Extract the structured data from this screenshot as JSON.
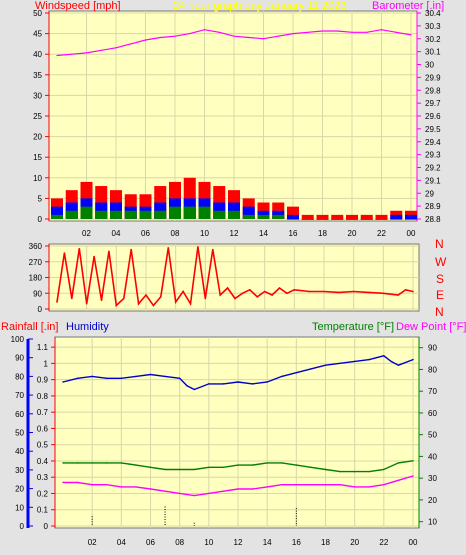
{
  "colors": {
    "background": "#e3e3e3",
    "plot_bg": "#ffffc0",
    "grid": "#d8d8a8",
    "wind": "#ff0000",
    "gust_mid": "#0000ff",
    "gust_low": "#008000",
    "barometer": "#ff00ff",
    "title": "#ffff00",
    "humidity": "#0000cc",
    "temperature": "#008000",
    "dewpoint": "#ff00ff",
    "rain_axis": "#0000ff"
  },
  "header": {
    "wind_label": "Windspeed [mph]",
    "title": "24 hour graph day    January 11 2023",
    "baro_label": "Barometer [.in]"
  },
  "bottom_header": {
    "rain_label": "Rainfall [.in]",
    "humidity_label": "Humidity",
    "temp_label": "Temperature [°F]",
    "dew_label": "Dew Point [°F]"
  },
  "compass": [
    "N",
    "W",
    "S",
    "E",
    "N"
  ],
  "chart_data": [
    {
      "type": "line",
      "title": "24 hour graph day    January 11 2023",
      "x_ticks": [
        "02",
        "04",
        "06",
        "08",
        "10",
        "12",
        "14",
        "16",
        "18",
        "20",
        "22",
        "00"
      ],
      "y_left_label": "Windspeed [mph]",
      "y_left_ticks": [
        0,
        5,
        10,
        15,
        20,
        25,
        30,
        35,
        40,
        45,
        50
      ],
      "ylim_left": [
        0,
        50
      ],
      "y_right_label": "Barometer [.in]",
      "y_right_ticks": [
        28.8,
        28.9,
        29,
        29.1,
        29.2,
        29.3,
        29.4,
        29.5,
        29.6,
        29.7,
        29.8,
        29.9,
        30,
        30.1,
        30.2,
        30.3,
        30.4
      ],
      "ylim_right": [
        28.8,
        30.4
      ],
      "series": [
        {
          "axis": "right",
          "color": "#ff00ff",
          "x": [
            0,
            1,
            2,
            3,
            4,
            5,
            6,
            7,
            8,
            9,
            10,
            11,
            12,
            13,
            14,
            15,
            16,
            17,
            18,
            19,
            20,
            21,
            22,
            23,
            24
          ],
          "values": [
            30.07,
            30.08,
            30.09,
            30.11,
            30.13,
            30.16,
            30.19,
            30.21,
            30.22,
            30.24,
            30.27,
            30.25,
            30.22,
            30.21,
            30.2,
            30.22,
            30.24,
            30.25,
            30.26,
            30.26,
            30.25,
            30.25,
            30.27,
            30.25,
            30.23
          ]
        },
        {
          "axis": "left",
          "color": "#ff0000",
          "x": [
            0,
            1,
            2,
            3,
            4,
            5,
            6,
            7,
            8,
            9,
            10,
            11,
            12,
            13,
            14,
            15,
            16,
            17,
            18,
            19,
            20,
            21,
            22,
            23,
            24
          ],
          "values": [
            5,
            7,
            9,
            8,
            7,
            6,
            6,
            8,
            9,
            10,
            9,
            8,
            7,
            5,
            4,
            4,
            3,
            1,
            1,
            1,
            1,
            1,
            1,
            2,
            2
          ]
        },
        {
          "axis": "left",
          "color": "#0000ff",
          "x": [
            0,
            1,
            2,
            3,
            4,
            5,
            6,
            7,
            8,
            9,
            10,
            11,
            12,
            13,
            14,
            15,
            16,
            17,
            18,
            19,
            20,
            21,
            22,
            23,
            24
          ],
          "values": [
            3,
            4,
            5,
            4,
            4,
            3,
            3,
            4,
            5,
            5,
            5,
            4,
            4,
            3,
            2,
            2,
            1,
            0,
            0,
            0,
            0,
            0,
            0,
            1,
            1
          ]
        },
        {
          "axis": "left",
          "color": "#008000",
          "x": [
            0,
            1,
            2,
            3,
            4,
            5,
            6,
            7,
            8,
            9,
            10,
            11,
            12,
            13,
            14,
            15,
            16,
            17,
            18,
            19,
            20,
            21,
            22,
            23,
            24
          ],
          "values": [
            1,
            2,
            3,
            2,
            2,
            2,
            2,
            2,
            3,
            3,
            3,
            2,
            2,
            1,
            1,
            1,
            0,
            0,
            0,
            0,
            0,
            0,
            0,
            0,
            0
          ]
        }
      ]
    },
    {
      "type": "line",
      "x_ticks": [
        "02",
        "04",
        "06",
        "08",
        "10",
        "12",
        "14",
        "16",
        "18",
        "20",
        "22",
        "00"
      ],
      "y_left_ticks": [
        0,
        90,
        180,
        270,
        360
      ],
      "ylim": [
        0,
        360
      ],
      "y_right_labels": [
        "N",
        "W",
        "S",
        "E",
        "N"
      ],
      "series": [
        {
          "color": "#ff0000",
          "x": [
            0,
            0.5,
            1,
            1.5,
            2,
            2.5,
            3,
            3.5,
            4,
            4.5,
            5,
            5.5,
            6,
            6.5,
            7,
            7.5,
            8,
            8.5,
            9,
            9.5,
            10,
            10.5,
            11,
            11.5,
            12,
            12.5,
            13,
            13.5,
            14,
            14.5,
            15,
            15.5,
            16,
            17,
            18,
            19,
            20,
            21,
            22,
            23,
            23.5,
            24
          ],
          "values": [
            40,
            320,
            60,
            345,
            30,
            300,
            50,
            330,
            20,
            60,
            340,
            30,
            80,
            20,
            70,
            350,
            40,
            100,
            30,
            355,
            60,
            340,
            80,
            120,
            60,
            90,
            110,
            70,
            100,
            80,
            120,
            90,
            110,
            100,
            100,
            95,
            100,
            95,
            90,
            80,
            110,
            100
          ]
        }
      ]
    },
    {
      "type": "line",
      "x_ticks": [
        "02",
        "04",
        "06",
        "08",
        "10",
        "12",
        "14",
        "16",
        "18",
        "20",
        "22",
        "00"
      ],
      "y_left1_label": "Rainfall [.in]",
      "y_left1_ticks": [
        0,
        0.1,
        0.2,
        0.3,
        0.4,
        0.5,
        0.6,
        0.7,
        0.8,
        0.9,
        1,
        1.1
      ],
      "ylim_left1": [
        0,
        1.15
      ],
      "y_left2_label": "Humidity",
      "y_left2_ticks": [
        0,
        10,
        20,
        30,
        40,
        50,
        60,
        70,
        80,
        90,
        100
      ],
      "ylim_left2": [
        0,
        100
      ],
      "y_right_label": "Temperature [°F] / Dew Point [°F]",
      "y_right_ticks": [
        10,
        20,
        30,
        40,
        50,
        60,
        70,
        80,
        90
      ],
      "ylim_right": [
        8,
        94
      ],
      "series": [
        {
          "name": "Humidity",
          "axis": "left2",
          "color": "#0000cc",
          "x": [
            0,
            1,
            2,
            3,
            4,
            5,
            6,
            7,
            8,
            8.5,
            9,
            10,
            11,
            12,
            13,
            14,
            15,
            16,
            17,
            18,
            19,
            20,
            21,
            22,
            22.5,
            23,
            24
          ],
          "values": [
            77,
            79,
            80,
            79,
            79,
            80,
            81,
            80,
            79,
            75,
            73,
            76,
            76,
            77,
            76,
            77,
            80,
            82,
            84,
            86,
            87,
            88,
            89,
            91,
            88,
            86,
            89
          ]
        },
        {
          "name": "Temperature [°F]",
          "axis": "right",
          "color": "#008000",
          "x": [
            0,
            1,
            2,
            3,
            4,
            5,
            6,
            7,
            8,
            9,
            10,
            11,
            12,
            13,
            14,
            15,
            16,
            17,
            18,
            19,
            20,
            21,
            22,
            23,
            24
          ],
          "values": [
            37,
            37,
            37,
            37,
            37,
            36,
            35,
            34,
            34,
            34,
            35,
            35,
            36,
            36,
            37,
            37,
            36,
            35,
            34,
            33,
            33,
            33,
            34,
            37,
            38
          ]
        },
        {
          "name": "Dew Point [°F]",
          "axis": "right",
          "color": "#ff00ff",
          "x": [
            0,
            1,
            2,
            3,
            4,
            5,
            6,
            7,
            8,
            9,
            10,
            11,
            12,
            13,
            14,
            15,
            16,
            17,
            18,
            19,
            20,
            21,
            22,
            23,
            24
          ],
          "values": [
            28,
            28,
            27,
            27,
            26,
            26,
            25,
            24,
            23,
            22,
            23,
            24,
            25,
            25,
            26,
            27,
            27,
            27,
            27,
            27,
            26,
            26,
            27,
            29,
            31
          ]
        },
        {
          "name": "Rainfall [.in]",
          "axis": "left1",
          "color": "#000000",
          "x": [
            2,
            7,
            9,
            16
          ],
          "values": [
            0.06,
            0.12,
            0.02,
            0.11
          ]
        }
      ]
    }
  ]
}
